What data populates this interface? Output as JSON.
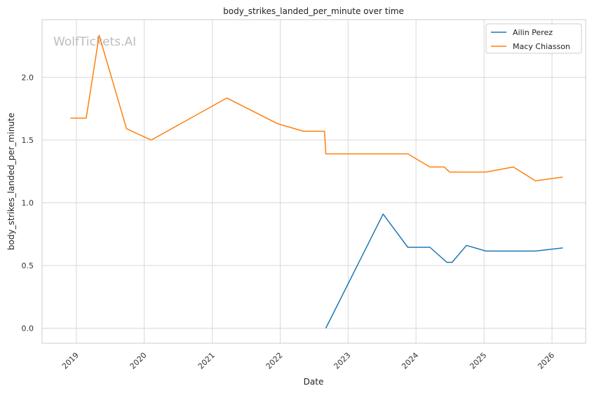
{
  "chart_data": {
    "type": "line",
    "title": "body_strikes_landed_per_minute over time",
    "xlabel": "Date",
    "ylabel": "body_strikes_landed_per_minute",
    "watermark": "WolfTickets.AI",
    "xlim": [
      "2018-07-01",
      "2026-07-01"
    ],
    "ylim": [
      -0.12,
      2.46
    ],
    "x_ticks": [
      "2019",
      "2020",
      "2021",
      "2022",
      "2023",
      "2024",
      "2025",
      "2026"
    ],
    "y_ticks": [
      "0.0",
      "0.5",
      "1.0",
      "1.5",
      "2.0"
    ],
    "grid": true,
    "legend_position": "top-right",
    "series": [
      {
        "name": "Ailin Perez",
        "color": "#1f77b4",
        "points": [
          [
            "2022-09-03",
            0.0
          ],
          [
            "2023-07-08",
            0.91
          ],
          [
            "2023-11-18",
            0.645
          ],
          [
            "2024-03-16",
            0.645
          ],
          [
            "2024-06-15",
            0.525
          ],
          [
            "2024-07-13",
            0.525
          ],
          [
            "2024-09-28",
            0.66
          ],
          [
            "2025-01-11",
            0.615
          ],
          [
            "2025-10-04",
            0.615
          ],
          [
            "2026-02-28",
            0.64
          ]
        ]
      },
      {
        "name": "Macy Chiasson",
        "color": "#ff7f0e",
        "points": [
          [
            "2018-11-30",
            1.675
          ],
          [
            "2019-02-23",
            1.675
          ],
          [
            "2019-05-04",
            2.335
          ],
          [
            "2019-09-28",
            1.59
          ],
          [
            "2020-02-08",
            1.5
          ],
          [
            "2021-03-20",
            1.835
          ],
          [
            "2021-12-18",
            1.63
          ],
          [
            "2022-05-07",
            1.57
          ],
          [
            "2022-08-27",
            1.57
          ],
          [
            "2022-09-03",
            1.39
          ],
          [
            "2023-11-18",
            1.39
          ],
          [
            "2024-03-16",
            1.285
          ],
          [
            "2024-06-01",
            1.285
          ],
          [
            "2024-06-29",
            1.245
          ],
          [
            "2025-01-11",
            1.245
          ],
          [
            "2025-06-07",
            1.285
          ],
          [
            "2025-10-04",
            1.175
          ],
          [
            "2026-02-28",
            1.205
          ]
        ]
      }
    ]
  }
}
